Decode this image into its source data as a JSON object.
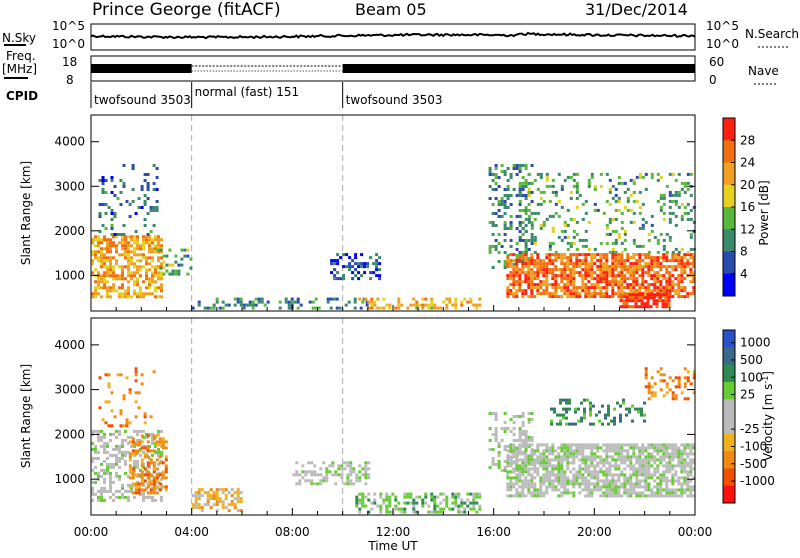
{
  "header": {
    "station": "Prince George (fitACF)",
    "beam": "Beam 05",
    "date": "31/Dec/2014"
  },
  "summary_panel": {
    "nsky_label": "N.Sky",
    "nsearch_label": "N.Search",
    "noise_ticks": [
      "10^5",
      "10^0"
    ],
    "freq_label_line1": "Freq.",
    "freq_label_line2": "[MHz]",
    "freq_ticks": [
      "18",
      "8"
    ],
    "nave_label": "Nave",
    "nave_ticks": [
      "60",
      "0"
    ],
    "cpid_label": "CPID",
    "cpid_segments": [
      {
        "label": "twofsound 3503",
        "start_hour": 0,
        "end_hour": 4
      },
      {
        "label": "normal (fast) 151",
        "start_hour": 4,
        "end_hour": 10
      },
      {
        "label": "twofsound 3503",
        "start_hour": 10,
        "end_hour": 24
      }
    ]
  },
  "colors": {
    "power_scale": [
      "#0000ff",
      "#2a4cb0",
      "#3a8a6a",
      "#57b83c",
      "#e6d020",
      "#f0a020",
      "#f07010",
      "#ff2010"
    ],
    "velocity_scale": [
      "#2850c8",
      "#3a6a8a",
      "#2e8a50",
      "#66cc33",
      "#bbbbbb",
      "#bbbbbb",
      "#f0b020",
      "#f08a10",
      "#f05000",
      "#ff1010"
    ],
    "marker_line": "#aaaaaa"
  },
  "chart_data": [
    {
      "type": "heatmap",
      "panel": "power",
      "ylabel": "Slant Range [km]",
      "yticks": [
        "1000",
        "2000",
        "3000",
        "4000"
      ],
      "ylim": [
        200,
        4600
      ],
      "colorbar_label": "Power [dB]",
      "colorbar_ticks": [
        "4",
        "8",
        "12",
        "16",
        "20",
        "24",
        "28"
      ],
      "colorbar_range": [
        0,
        32
      ],
      "scatter_regions": [
        {
          "x0": 0.0,
          "x1": 2.8,
          "y0": 500,
          "y1": 1900,
          "value": 22,
          "density": 0.6
        },
        {
          "x0": 0.3,
          "x1": 2.6,
          "y0": 1900,
          "y1": 3500,
          "value": 8,
          "density": 0.15
        },
        {
          "x0": 2.6,
          "x1": 4.0,
          "y0": 1000,
          "y1": 1600,
          "value": 12,
          "density": 0.3
        },
        {
          "x0": 4.0,
          "x1": 11.0,
          "y0": 280,
          "y1": 500,
          "value": 10,
          "density": 0.35
        },
        {
          "x0": 9.5,
          "x1": 11.5,
          "y0": 900,
          "y1": 1500,
          "value": 6,
          "density": 0.4
        },
        {
          "x0": 10.5,
          "x1": 15.5,
          "y0": 280,
          "y1": 500,
          "value": 20,
          "density": 0.45
        },
        {
          "x0": 15.8,
          "x1": 17.5,
          "y0": 1200,
          "y1": 3500,
          "value": 10,
          "density": 0.3
        },
        {
          "x0": 16.5,
          "x1": 24.0,
          "y0": 500,
          "y1": 1500,
          "value": 26,
          "density": 0.75
        },
        {
          "x0": 17.0,
          "x1": 24.0,
          "y0": 1500,
          "y1": 3300,
          "value": 12,
          "density": 0.18
        },
        {
          "x0": 21.0,
          "x1": 23.0,
          "y0": 300,
          "y1": 600,
          "value": 30,
          "density": 0.8
        }
      ]
    },
    {
      "type": "heatmap",
      "panel": "velocity",
      "ylabel": "Slant Range [km]",
      "yticks": [
        "1000",
        "2000",
        "3000",
        "4000"
      ],
      "ylim": [
        200,
        4600
      ],
      "colorbar_label": "Velocity [m s^-1]",
      "colorbar_ticks": [
        "1000",
        "500",
        "100",
        "25",
        "-25",
        "-100",
        "-500",
        "-1000"
      ],
      "scatter_regions": [
        {
          "x0": 0.0,
          "x1": 2.8,
          "y0": 500,
          "y1": 2100,
          "value": 4,
          "density": 0.45
        },
        {
          "x0": 1.5,
          "x1": 3.0,
          "y0": 700,
          "y1": 2000,
          "value": 7,
          "density": 0.5
        },
        {
          "x0": 0.3,
          "x1": 2.6,
          "y0": 2100,
          "y1": 3500,
          "value": 7,
          "density": 0.1
        },
        {
          "x0": 4.0,
          "x1": 6.0,
          "y0": 300,
          "y1": 800,
          "value": 6,
          "density": 0.5
        },
        {
          "x0": 8.0,
          "x1": 11.0,
          "y0": 900,
          "y1": 1400,
          "value": 4,
          "density": 0.5
        },
        {
          "x0": 10.5,
          "x1": 15.5,
          "y0": 280,
          "y1": 700,
          "value": 3,
          "density": 0.5
        },
        {
          "x0": 15.8,
          "x1": 17.5,
          "y0": 1200,
          "y1": 2500,
          "value": 4,
          "density": 0.35
        },
        {
          "x0": 16.5,
          "x1": 24.0,
          "y0": 600,
          "y1": 1800,
          "value": 4,
          "density": 0.75
        },
        {
          "x0": 18.0,
          "x1": 22.0,
          "y0": 2200,
          "y1": 2800,
          "value": 2,
          "density": 0.3
        },
        {
          "x0": 22.0,
          "x1": 24.0,
          "y0": 2800,
          "y1": 3500,
          "value": 7,
          "density": 0.3
        }
      ]
    }
  ],
  "xaxis": {
    "label": "Time UT",
    "ticks": [
      "00:00",
      "04:00",
      "08:00",
      "12:00",
      "16:00",
      "20:00",
      "00:00"
    ]
  }
}
